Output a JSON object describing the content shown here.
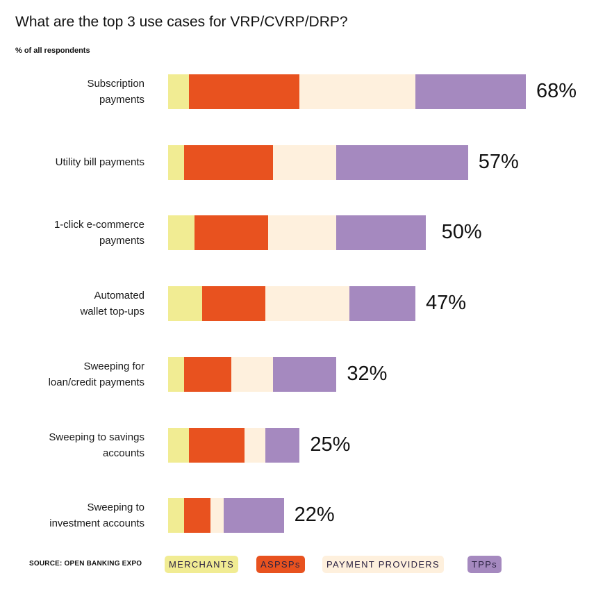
{
  "title": "What are the top 3 use cases for VRP/CVRP/DRP?",
  "subtitle": "% of all respondents",
  "source": "SOURCE: OPEN BANKING EXPO",
  "chart_data": {
    "type": "bar",
    "orientation": "horizontal",
    "stacked": true,
    "title": "What are the top 3 use cases for VRP/CVRP/DRP?",
    "subtitle": "% of all respondents",
    "categories": [
      "Subscription payments",
      "Utility bill payments",
      "1-click e-commerce payments",
      "Automated wallet top-ups",
      "Sweeping for loan/credit payments",
      "Sweeping to savings accounts",
      "Sweeping to investment accounts"
    ],
    "category_lines": [
      [
        "Subscription",
        "payments"
      ],
      [
        "Utility bill payments"
      ],
      [
        "1-click e-commerce",
        "payments"
      ],
      [
        "Automated",
        "wallet top-ups"
      ],
      [
        "Sweeping for",
        "loan/credit payments"
      ],
      [
        "Sweeping to savings",
        "accounts"
      ],
      [
        "Sweeping to",
        "investment accounts"
      ]
    ],
    "totals": [
      68,
      57,
      50,
      47,
      32,
      25,
      22
    ],
    "total_labels": [
      "68%",
      "57%",
      "50%",
      "47%",
      "32%",
      "25%",
      "22%"
    ],
    "series": [
      {
        "name": "MERCHANTS",
        "color": "#F1EC93",
        "values": [
          4,
          3,
          5,
          6.5,
          3,
          4,
          3
        ]
      },
      {
        "name": "ASPSPs",
        "color": "#E8521F",
        "values": [
          21,
          17,
          14,
          12,
          9,
          10.5,
          5
        ]
      },
      {
        "name": "PAYMENT PROVIDERS",
        "color": "#FEF0DD",
        "values": [
          22,
          12,
          13,
          16,
          8,
          4,
          2.5
        ]
      },
      {
        "name": "TPPs",
        "color": "#A589BF",
        "values": [
          21,
          25,
          17,
          12.5,
          12,
          6.5,
          11.5
        ]
      }
    ],
    "legend_position": "bottom",
    "grid": false
  }
}
